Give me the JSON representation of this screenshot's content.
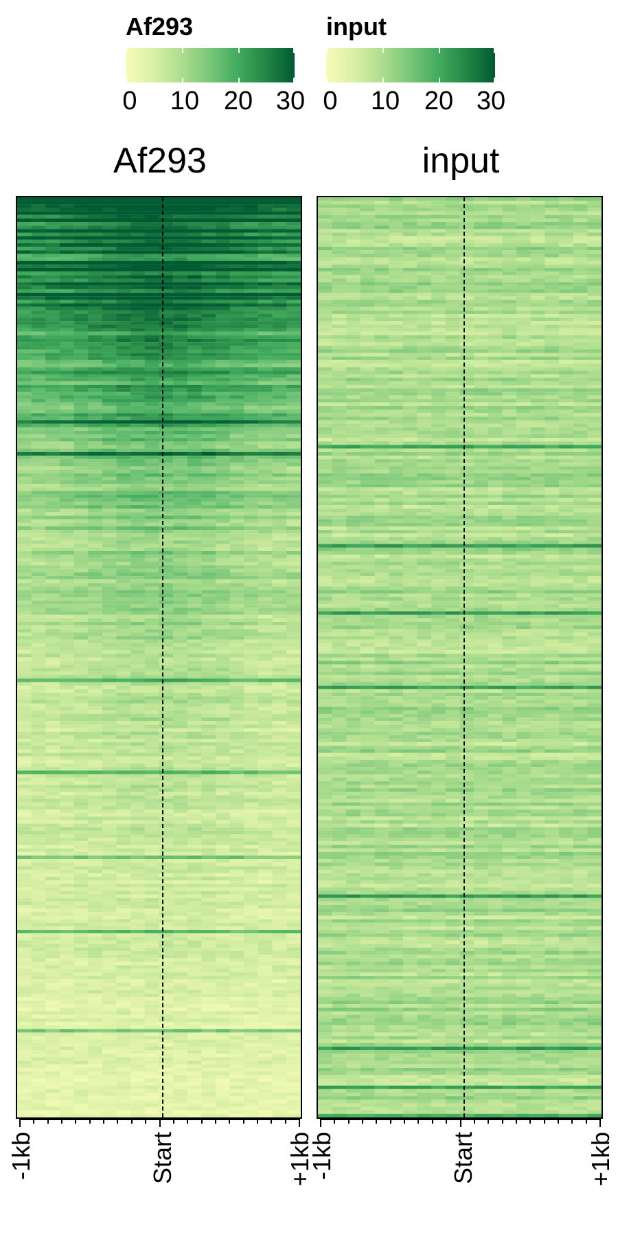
{
  "chart_data": {
    "type": "heatmap",
    "legends": [
      {
        "title": "Af293",
        "ticks": [
          0,
          10,
          20,
          30
        ],
        "range": [
          0,
          30
        ]
      },
      {
        "title": "input",
        "ticks": [
          0,
          10,
          20,
          30
        ],
        "range": [
          0,
          30
        ]
      }
    ],
    "colorscale": [
      "#f7fcb9",
      "#d9f0a3",
      "#addd8e",
      "#78c679",
      "#41ab5d",
      "#238443",
      "#005a32"
    ],
    "x_ticks": [
      "-1kb",
      "Start",
      "+1kb"
    ],
    "panels": [
      {
        "title": "Af293",
        "x_ticks": [
          "-1kb",
          "Start",
          "+1kb"
        ],
        "profile": {
          "description_values": [
            28,
            24,
            20,
            16,
            13,
            11,
            9,
            8,
            7,
            6,
            6,
            5,
            5,
            4,
            4,
            3
          ],
          "center_boost": 6
        }
      },
      {
        "title": "input",
        "x_ticks": [
          "-1kb",
          "Start",
          "+1kb"
        ],
        "profile": {
          "description_values": [
            10,
            10,
            10,
            10,
            10,
            10,
            10,
            10,
            10,
            10,
            10,
            10,
            10,
            10,
            10,
            10
          ],
          "center_boost": 0
        }
      }
    ],
    "reference_line": "Start",
    "reference_line_style": "dashed"
  }
}
